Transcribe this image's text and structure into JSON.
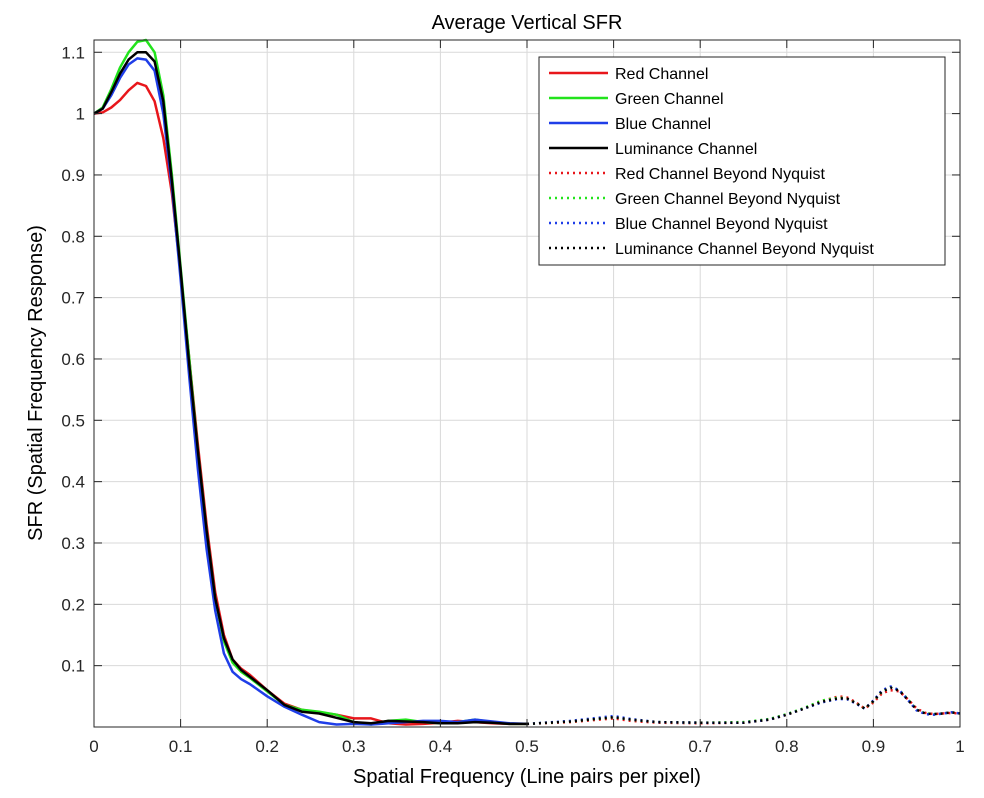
{
  "chart_data": {
    "type": "line",
    "title": "Average Vertical SFR",
    "xlabel": "Spatial Frequency (Line pairs per pixel)",
    "ylabel": "SFR (Spatial Frequency Response)",
    "xlim": [
      0,
      1
    ],
    "ylim": [
      0,
      1.12
    ],
    "grid": true,
    "legend_position": "top-right",
    "x_ticks": [
      {
        "value": 0,
        "label": "0"
      },
      {
        "value": 0.1,
        "label": "0.1"
      },
      {
        "value": 0.2,
        "label": "0.2"
      },
      {
        "value": 0.3,
        "label": "0.3"
      },
      {
        "value": 0.4,
        "label": "0.4"
      },
      {
        "value": 0.5,
        "label": "0.5"
      },
      {
        "value": 0.6,
        "label": "0.6"
      },
      {
        "value": 0.7,
        "label": "0.7"
      },
      {
        "value": 0.8,
        "label": "0.8"
      },
      {
        "value": 0.9,
        "label": "0.9"
      },
      {
        "value": 1,
        "label": "1"
      }
    ],
    "y_ticks": [
      {
        "value": 0.1,
        "label": "0.1"
      },
      {
        "value": 0.2,
        "label": "0.2"
      },
      {
        "value": 0.3,
        "label": "0.3"
      },
      {
        "value": 0.4,
        "label": "0.4"
      },
      {
        "value": 0.5,
        "label": "0.5"
      },
      {
        "value": 0.6,
        "label": "0.6"
      },
      {
        "value": 0.7,
        "label": "0.7"
      },
      {
        "value": 0.8,
        "label": "0.8"
      },
      {
        "value": 0.9,
        "label": "0.9"
      },
      {
        "value": 1,
        "label": "1"
      },
      {
        "value": 1.1,
        "label": "1.1"
      }
    ],
    "series": [
      {
        "name": "Red Channel",
        "color": "#e8161b",
        "dash": "solid",
        "x": [
          0,
          0.01,
          0.02,
          0.03,
          0.04,
          0.05,
          0.06,
          0.07,
          0.08,
          0.09,
          0.1,
          0.11,
          0.12,
          0.13,
          0.14,
          0.15,
          0.16,
          0.17,
          0.18,
          0.2,
          0.22,
          0.24,
          0.26,
          0.28,
          0.3,
          0.32,
          0.34,
          0.36,
          0.38,
          0.4,
          0.42,
          0.44,
          0.46,
          0.48,
          0.5
        ],
        "y": [
          1.0,
          1.002,
          1.01,
          1.022,
          1.038,
          1.05,
          1.045,
          1.02,
          0.96,
          0.87,
          0.74,
          0.6,
          0.46,
          0.33,
          0.22,
          0.15,
          0.11,
          0.095,
          0.085,
          0.06,
          0.038,
          0.028,
          0.024,
          0.02,
          0.014,
          0.014,
          0.006,
          0.004,
          0.005,
          0.007,
          0.01,
          0.008,
          0.006,
          0.005,
          0.005
        ]
      },
      {
        "name": "Green Channel",
        "color": "#22e31c",
        "dash": "solid",
        "x": [
          0,
          0.01,
          0.02,
          0.03,
          0.04,
          0.05,
          0.06,
          0.07,
          0.08,
          0.09,
          0.1,
          0.11,
          0.12,
          0.13,
          0.14,
          0.15,
          0.16,
          0.17,
          0.18,
          0.2,
          0.22,
          0.24,
          0.26,
          0.28,
          0.3,
          0.32,
          0.34,
          0.36,
          0.38,
          0.4,
          0.42,
          0.44,
          0.46,
          0.48,
          0.5
        ],
        "y": [
          1.0,
          1.01,
          1.04,
          1.075,
          1.1,
          1.117,
          1.12,
          1.1,
          1.03,
          0.9,
          0.75,
          0.6,
          0.45,
          0.32,
          0.21,
          0.14,
          0.105,
          0.09,
          0.08,
          0.058,
          0.036,
          0.028,
          0.025,
          0.02,
          0.008,
          0.004,
          0.01,
          0.012,
          0.008,
          0.006,
          0.008,
          0.012,
          0.008,
          0.005,
          0.005
        ]
      },
      {
        "name": "Blue Channel",
        "color": "#1f3ee8",
        "dash": "solid",
        "x": [
          0,
          0.01,
          0.02,
          0.03,
          0.04,
          0.05,
          0.06,
          0.07,
          0.08,
          0.09,
          0.1,
          0.11,
          0.12,
          0.13,
          0.14,
          0.15,
          0.16,
          0.17,
          0.18,
          0.2,
          0.22,
          0.24,
          0.26,
          0.28,
          0.3,
          0.32,
          0.34,
          0.36,
          0.38,
          0.4,
          0.42,
          0.44,
          0.46,
          0.48,
          0.5
        ],
        "y": [
          1.0,
          1.008,
          1.03,
          1.058,
          1.08,
          1.09,
          1.088,
          1.07,
          1.0,
          0.88,
          0.73,
          0.57,
          0.42,
          0.29,
          0.19,
          0.12,
          0.09,
          0.078,
          0.07,
          0.05,
          0.033,
          0.02,
          0.008,
          0.004,
          0.005,
          0.004,
          0.006,
          0.008,
          0.01,
          0.01,
          0.008,
          0.012,
          0.009,
          0.006,
          0.005
        ]
      },
      {
        "name": "Luminance Channel",
        "color": "#000000",
        "dash": "solid",
        "x": [
          0,
          0.01,
          0.02,
          0.03,
          0.04,
          0.05,
          0.06,
          0.07,
          0.08,
          0.09,
          0.1,
          0.11,
          0.12,
          0.13,
          0.14,
          0.15,
          0.16,
          0.17,
          0.18,
          0.2,
          0.22,
          0.24,
          0.26,
          0.28,
          0.3,
          0.32,
          0.34,
          0.36,
          0.38,
          0.4,
          0.42,
          0.44,
          0.46,
          0.48,
          0.5
        ],
        "y": [
          1.0,
          1.008,
          1.035,
          1.065,
          1.088,
          1.1,
          1.1,
          1.085,
          1.02,
          0.89,
          0.745,
          0.59,
          0.45,
          0.32,
          0.21,
          0.145,
          0.11,
          0.093,
          0.082,
          0.06,
          0.036,
          0.025,
          0.022,
          0.015,
          0.008,
          0.006,
          0.01,
          0.009,
          0.008,
          0.006,
          0.006,
          0.008,
          0.007,
          0.005,
          0.005
        ]
      },
      {
        "name": "Red Channel Beyond Nyquist",
        "color": "#e8161b",
        "dash": "dotted",
        "x": [
          0.5,
          0.55,
          0.6,
          0.62,
          0.65,
          0.7,
          0.75,
          0.78,
          0.8,
          0.82,
          0.84,
          0.86,
          0.87,
          0.88,
          0.89,
          0.9,
          0.91,
          0.92,
          0.93,
          0.94,
          0.95,
          0.96,
          0.97,
          0.98,
          0.99,
          1.0
        ],
        "y": [
          0.005,
          0.008,
          0.014,
          0.01,
          0.007,
          0.006,
          0.007,
          0.012,
          0.02,
          0.03,
          0.042,
          0.05,
          0.048,
          0.04,
          0.03,
          0.04,
          0.055,
          0.06,
          0.058,
          0.045,
          0.03,
          0.023,
          0.021,
          0.022,
          0.023,
          0.022
        ]
      },
      {
        "name": "Green Channel Beyond Nyquist",
        "color": "#22e31c",
        "dash": "dotted",
        "x": [
          0.5,
          0.55,
          0.6,
          0.62,
          0.65,
          0.7,
          0.75,
          0.78,
          0.8,
          0.82,
          0.84,
          0.86,
          0.87,
          0.88,
          0.89,
          0.9,
          0.91,
          0.92,
          0.93,
          0.94,
          0.95,
          0.96,
          0.97,
          0.98,
          0.99,
          1.0
        ],
        "y": [
          0.005,
          0.009,
          0.016,
          0.012,
          0.008,
          0.007,
          0.008,
          0.013,
          0.021,
          0.031,
          0.043,
          0.048,
          0.046,
          0.039,
          0.03,
          0.042,
          0.058,
          0.065,
          0.06,
          0.045,
          0.028,
          0.022,
          0.021,
          0.022,
          0.024,
          0.022
        ]
      },
      {
        "name": "Blue Channel Beyond Nyquist",
        "color": "#1f3ee8",
        "dash": "dotted",
        "x": [
          0.5,
          0.55,
          0.6,
          0.62,
          0.65,
          0.7,
          0.75,
          0.78,
          0.8,
          0.82,
          0.84,
          0.86,
          0.87,
          0.88,
          0.89,
          0.9,
          0.91,
          0.92,
          0.93,
          0.94,
          0.95,
          0.96,
          0.97,
          0.98,
          0.99,
          1.0
        ],
        "y": [
          0.005,
          0.01,
          0.018,
          0.013,
          0.008,
          0.007,
          0.007,
          0.012,
          0.02,
          0.03,
          0.04,
          0.046,
          0.045,
          0.038,
          0.03,
          0.043,
          0.06,
          0.066,
          0.06,
          0.044,
          0.027,
          0.021,
          0.02,
          0.022,
          0.024,
          0.022
        ]
      },
      {
        "name": "Luminance Channel Beyond Nyquist",
        "color": "#000000",
        "dash": "dotted",
        "x": [
          0.5,
          0.55,
          0.6,
          0.62,
          0.65,
          0.7,
          0.75,
          0.78,
          0.8,
          0.82,
          0.84,
          0.86,
          0.87,
          0.88,
          0.89,
          0.9,
          0.91,
          0.92,
          0.93,
          0.94,
          0.95,
          0.96,
          0.97,
          0.98,
          0.99,
          1.0
        ],
        "y": [
          0.005,
          0.009,
          0.016,
          0.012,
          0.008,
          0.007,
          0.007,
          0.012,
          0.02,
          0.03,
          0.041,
          0.047,
          0.046,
          0.039,
          0.03,
          0.042,
          0.058,
          0.064,
          0.059,
          0.044,
          0.028,
          0.022,
          0.021,
          0.022,
          0.024,
          0.022
        ]
      }
    ]
  }
}
